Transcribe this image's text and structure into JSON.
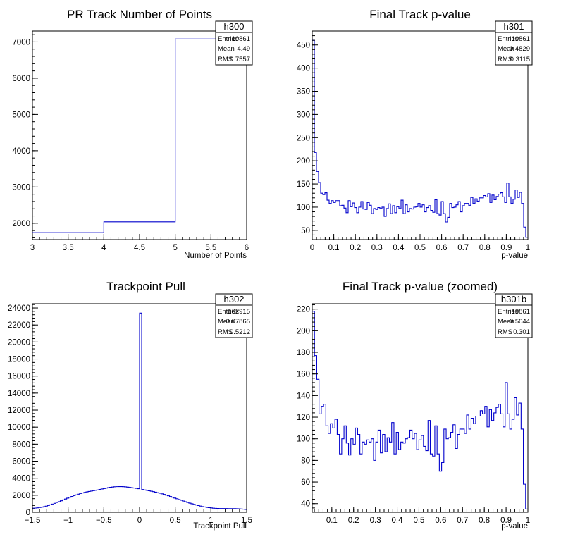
{
  "chart_data": [
    {
      "type": "histogram",
      "title": "PR Track Number of Points",
      "xlabel": "Number of Points",
      "ylabel": "",
      "xlim": [
        3,
        6
      ],
      "ylim": [
        1550,
        7300
      ],
      "x_ticks": [
        3,
        3.5,
        4,
        4.5,
        5,
        5.5,
        6
      ],
      "x_tick_labels": [
        "3",
        "3.5",
        "4",
        "4.5",
        "5",
        "5.5",
        "6"
      ],
      "y_ticks": [
        2000,
        3000,
        4000,
        5000,
        6000,
        7000
      ],
      "y_tick_labels": [
        "2000",
        "3000",
        "4000",
        "5000",
        "6000",
        "7000"
      ],
      "bin_edges": [
        3,
        4,
        5,
        6
      ],
      "values": [
        1740,
        2040,
        7080
      ],
      "stats": {
        "name": "h300",
        "rows": [
          [
            "Entries",
            "10861"
          ],
          [
            "Mean",
            "4.49"
          ],
          [
            "RMS",
            "0.7557"
          ]
        ]
      }
    },
    {
      "type": "histogram",
      "title": "Final Track p-value",
      "xlabel": "p-value",
      "ylabel": "",
      "xlim": [
        0,
        1
      ],
      "ylim": [
        30,
        480
      ],
      "x_ticks": [
        0,
        0.1,
        0.2,
        0.3,
        0.4,
        0.5,
        0.6,
        0.7,
        0.8,
        0.9,
        1
      ],
      "x_tick_labels": [
        "0",
        "0.1",
        "0.2",
        "0.3",
        "0.4",
        "0.5",
        "0.6",
        "0.7",
        "0.8",
        "0.9",
        "1"
      ],
      "y_ticks": [
        50,
        100,
        150,
        200,
        250,
        300,
        350,
        400,
        450
      ],
      "y_tick_labels": [
        "50",
        "100",
        "150",
        "200",
        "250",
        "300",
        "350",
        "400",
        "450"
      ],
      "bin_edges": [
        0,
        1
      ],
      "values": [
        460,
        218,
        177,
        153,
        130,
        127,
        131,
        115,
        108,
        114,
        110,
        114,
        114,
        103,
        104,
        98,
        88,
        114,
        101,
        109,
        99,
        88,
        100,
        112,
        96,
        95,
        110,
        104,
        86,
        97,
        95,
        99,
        97,
        100,
        80,
        97,
        107,
        86,
        103,
        88,
        101,
        97,
        115,
        86,
        105,
        90,
        97,
        96,
        100,
        101,
        108,
        100,
        105,
        90,
        99,
        103,
        93,
        89,
        116,
        86,
        83,
        112,
        86,
        68,
        78,
        108,
        99,
        100,
        105,
        112,
        90,
        103,
        108,
        108,
        104,
        121,
        108,
        118,
        113,
        120,
        120,
        125,
        122,
        129,
        110,
        126,
        116,
        123,
        128,
        131,
        122,
        110,
        152,
        122,
        108,
        117,
        137,
        121,
        132,
        108,
        57,
        35
      ]
    },
    {
      "type": "histogram",
      "title": "Trackpoint Pull",
      "xlabel": "Trackpoint Pull",
      "ylabel": "",
      "xlim": [
        -1.5,
        1.5
      ],
      "ylim": [
        0,
        24500
      ],
      "x_ticks": [
        -1.5,
        -1,
        -0.5,
        0,
        0.5,
        1,
        1.5
      ],
      "x_tick_labels": [
        "−1.5",
        "−1",
        "−0.5",
        "0",
        "0.5",
        "1",
        "1.5"
      ],
      "y_ticks": [
        0,
        2000,
        4000,
        6000,
        8000,
        10000,
        12000,
        14000,
        16000,
        18000,
        20000,
        22000,
        24000
      ],
      "y_tick_labels": [
        "0",
        "2000",
        "4000",
        "6000",
        "8000",
        "10000",
        "12000",
        "14000",
        "16000",
        "18000",
        "20000",
        "22000",
        "24000"
      ],
      "bin_edges": [
        -1.5,
        1.5
      ],
      "values": [
        480,
        496,
        523,
        560,
        605,
        661,
        725,
        797,
        876,
        962,
        1053,
        1150,
        1250,
        1352,
        1456,
        1560,
        1663,
        1764,
        1862,
        1956,
        2045,
        2128,
        2205,
        2274,
        2337,
        2393,
        2443,
        2490,
        2535,
        2581,
        2629,
        2681,
        2735,
        2789,
        2841,
        2889,
        2931,
        2966,
        2993,
        3010,
        3018,
        3015,
        3003,
        2982,
        2955,
        2923,
        2887,
        2848,
        2807,
        2764,
        23400,
        2674,
        2627,
        2579,
        2530,
        2478,
        2424,
        2367,
        2306,
        2241,
        2170,
        2095,
        2016,
        1934,
        1849,
        1762,
        1673,
        1584,
        1495,
        1407,
        1320,
        1235,
        1153,
        1073,
        997,
        924,
        855,
        790,
        729,
        673,
        623,
        578,
        540,
        509,
        485,
        466,
        453,
        444,
        440,
        437,
        436,
        435,
        434,
        431,
        426,
        417,
        405,
        388,
        365,
        337
      ],
      "stats": {
        "name": "h302",
        "rows": [
          [
            "Entries",
            "162915"
          ],
          [
            "Mean",
            "−0.07865"
          ],
          [
            "RMS",
            "0.5212"
          ]
        ]
      }
    },
    {
      "type": "histogram",
      "title": "Final Track p-value (zoomed)",
      "xlabel": "p-value",
      "ylabel": "",
      "xlim": [
        0.01,
        1
      ],
      "ylim": [
        32,
        225
      ],
      "x_ticks": [
        0.1,
        0.2,
        0.3,
        0.4,
        0.5,
        0.6,
        0.7,
        0.8,
        0.9,
        1
      ],
      "x_tick_labels": [
        "0.1",
        "0.2",
        "0.3",
        "0.4",
        "0.5",
        "0.6",
        "0.7",
        "0.8",
        "0.9",
        "1"
      ],
      "y_ticks": [
        40,
        60,
        80,
        100,
        120,
        140,
        160,
        180,
        200,
        220
      ],
      "y_tick_labels": [
        "40",
        "60",
        "80",
        "100",
        "120",
        "140",
        "160",
        "180",
        "200",
        "220"
      ],
      "bin_edges": [
        0.01,
        1
      ],
      "values": [
        218,
        177,
        155,
        123,
        130,
        132,
        112,
        105,
        114,
        110,
        118,
        104,
        86,
        100,
        112,
        96,
        85,
        100,
        95,
        110,
        104,
        86,
        97,
        95,
        99,
        97,
        100,
        80,
        97,
        108,
        87,
        104,
        88,
        101,
        97,
        115,
        86,
        106,
        90,
        97,
        96,
        100,
        101,
        108,
        100,
        105,
        90,
        99,
        103,
        93,
        89,
        117,
        86,
        84,
        112,
        86,
        70,
        78,
        109,
        100,
        101,
        106,
        113,
        91,
        104,
        109,
        109,
        105,
        122,
        109,
        119,
        114,
        121,
        121,
        126,
        123,
        130,
        111,
        127,
        117,
        124,
        129,
        132,
        123,
        111,
        152,
        123,
        109,
        118,
        138,
        122,
        133,
        109,
        58,
        35
      ],
      "stats": {
        "name": "h301b",
        "rows": [
          [
            "Entries",
            "10861"
          ],
          [
            "Mean",
            "0.5044"
          ],
          [
            "RMS",
            "0.301"
          ]
        ]
      }
    }
  ],
  "extra_stats": {
    "h301": {
      "name": "h301",
      "rows": [
        [
          "Entries",
          "10861"
        ],
        [
          "Mean",
          "0.4829"
        ],
        [
          "RMS",
          "0.3115"
        ]
      ]
    }
  },
  "colors": {
    "line": "#0000cc",
    "axis": "#000000",
    "background": "#ffffff"
  }
}
